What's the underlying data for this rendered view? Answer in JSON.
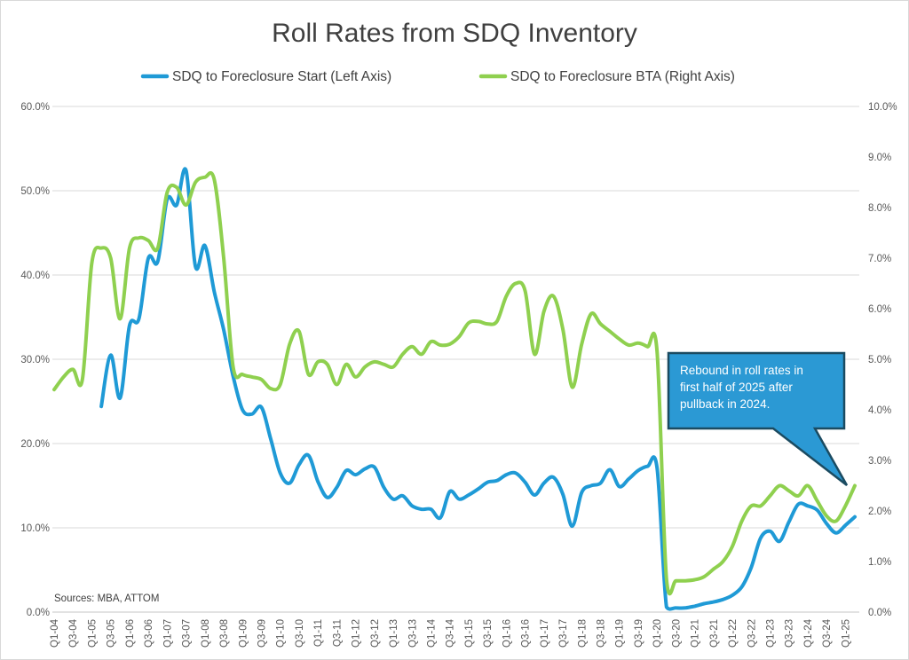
{
  "title": "Roll Rates from SDQ Inventory",
  "sources": "Sources: MBA, ATTOM",
  "legend": {
    "items": [
      {
        "label": "SDQ to Foreclosure Start (Left Axis)",
        "color": "#1f9ad6"
      },
      {
        "label": "SDQ to Foreclosure BTA (Right Axis)",
        "color": "#8fd04f"
      }
    ]
  },
  "callout": {
    "lines": [
      "Rebound in roll rates in",
      "first half of 2025 after",
      "pullback in 2024."
    ],
    "fill": "#2b99d4",
    "border": "#1b4b61",
    "text_color": "#ffffff"
  },
  "colors": {
    "gridline": "#d9d9d9",
    "axis_line": "#c6c6c6",
    "title": "#3f3f3f",
    "axis_labels": "#595959"
  },
  "chart_data": {
    "type": "line",
    "smooth": true,
    "grid": "horizontal-at-left-axis-ticks",
    "legend_position": "top",
    "x_start": "Q1-04",
    "x_end": "Q2-25",
    "x_tick_labels": [
      "Q1-04",
      "Q3-04",
      "Q1-05",
      "Q3-05",
      "Q1-06",
      "Q3-06",
      "Q1-07",
      "Q3-07",
      "Q1-08",
      "Q3-08",
      "Q1-09",
      "Q3-09",
      "Q1-10",
      "Q3-10",
      "Q1-11",
      "Q3-11",
      "Q1-12",
      "Q3-12",
      "Q1-13",
      "Q3-13",
      "Q1-14",
      "Q3-14",
      "Q1-15",
      "Q3-15",
      "Q1-16",
      "Q3-16",
      "Q1-17",
      "Q3-17",
      "Q1-18",
      "Q3-18",
      "Q1-19",
      "Q3-19",
      "Q1-20",
      "Q3-20",
      "Q1-21",
      "Q3-21",
      "Q1-22",
      "Q3-22",
      "Q1-23",
      "Q3-23",
      "Q1-24",
      "Q3-24",
      "Q1-25"
    ],
    "x_label_every_n_quarters": 2,
    "left_axis": {
      "min": 0,
      "max": 60,
      "step": 10,
      "tick_labels": [
        "0.0%",
        "10.0%",
        "20.0%",
        "30.0%",
        "40.0%",
        "50.0%",
        "60.0%"
      ]
    },
    "right_axis": {
      "min": 0,
      "max": 10,
      "step": 1,
      "tick_labels": [
        "0.0%",
        "1.0%",
        "2.0%",
        "3.0%",
        "4.0%",
        "5.0%",
        "6.0%",
        "7.0%",
        "8.0%",
        "9.0%",
        "10.0%"
      ]
    },
    "series": [
      {
        "name": "SDQ to Foreclosure Start (Left Axis)",
        "axis": "left",
        "color": "#1f9ad6",
        "unit": "%",
        "values": [
          null,
          null,
          null,
          null,
          null,
          24.4,
          30.5,
          25.4,
          34.0,
          34.8,
          42.0,
          41.6,
          49.0,
          48.3,
          52.4,
          41.0,
          43.5,
          38.0,
          33.5,
          28.0,
          24.0,
          23.5,
          24.3,
          20.5,
          16.5,
          15.3,
          17.5,
          18.6,
          15.5,
          13.6,
          14.8,
          16.8,
          16.3,
          17.0,
          17.2,
          14.8,
          13.4,
          13.8,
          12.6,
          12.2,
          12.2,
          11.2,
          14.3,
          13.4,
          13.9,
          14.6,
          15.4,
          15.6,
          16.3,
          16.5,
          15.4,
          13.9,
          15.3,
          16.0,
          14.0,
          10.2,
          14.2,
          15.0,
          15.3,
          16.9,
          14.9,
          15.8,
          16.8,
          17.3,
          17.1,
          0.6,
          0.5,
          0.5,
          0.7,
          1.0,
          1.2,
          1.5,
          2.0,
          3.0,
          5.3,
          8.8,
          9.6,
          8.4,
          10.7,
          12.8,
          12.6,
          12.1,
          10.5,
          9.4,
          10.3,
          11.3
        ]
      },
      {
        "name": "SDQ to Foreclosure BTA (Right Axis)",
        "axis": "right",
        "color": "#8fd04f",
        "unit": "%",
        "values": [
          4.4,
          4.65,
          4.8,
          4.6,
          6.9,
          7.2,
          7.0,
          5.8,
          7.2,
          7.4,
          7.35,
          7.2,
          8.3,
          8.4,
          8.05,
          8.5,
          8.6,
          8.55,
          7.0,
          4.85,
          4.7,
          4.65,
          4.6,
          4.42,
          4.5,
          5.3,
          5.55,
          4.7,
          4.95,
          4.9,
          4.5,
          4.9,
          4.65,
          4.85,
          4.95,
          4.9,
          4.85,
          5.1,
          5.25,
          5.1,
          5.35,
          5.28,
          5.3,
          5.45,
          5.72,
          5.75,
          5.7,
          5.75,
          6.25,
          6.5,
          6.35,
          5.1,
          5.95,
          6.25,
          5.6,
          4.45,
          5.3,
          5.9,
          5.7,
          5.55,
          5.4,
          5.28,
          5.32,
          5.25,
          5.15,
          0.65,
          0.62,
          0.62,
          0.64,
          0.7,
          0.85,
          1.0,
          1.3,
          1.8,
          2.1,
          2.1,
          2.3,
          2.5,
          2.4,
          2.3,
          2.5,
          2.2,
          1.9,
          1.8,
          2.1,
          2.5
        ]
      }
    ]
  }
}
